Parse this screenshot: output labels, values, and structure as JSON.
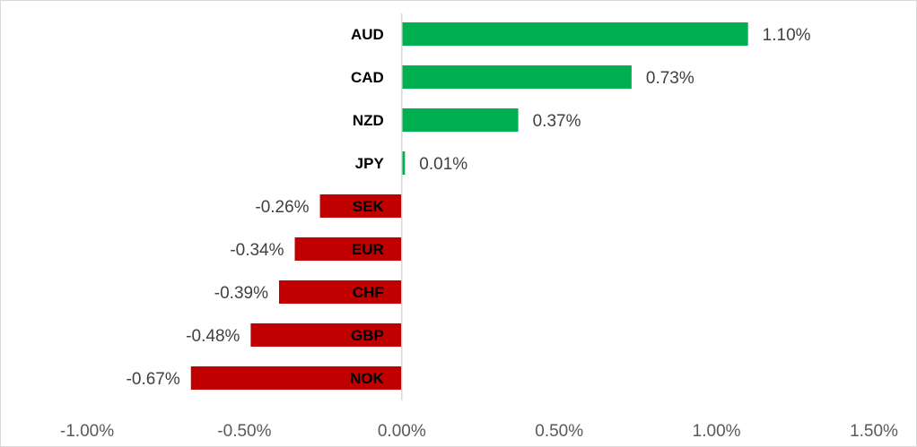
{
  "chart_data": {
    "type": "bar",
    "orientation": "horizontal",
    "categories": [
      "AUD",
      "CAD",
      "NZD",
      "JPY",
      "SEK",
      "EUR",
      "CHF",
      "GBP",
      "NOK"
    ],
    "values": [
      1.1,
      0.73,
      0.37,
      0.01,
      -0.26,
      -0.34,
      -0.39,
      -0.48,
      -0.67
    ],
    "data_labels": [
      "1.10%",
      "0.73%",
      "0.37%",
      "0.01%",
      "-0.26%",
      "-0.34%",
      "-0.39%",
      "-0.48%",
      "-0.67%"
    ],
    "x_ticks": [
      -1.0,
      -0.5,
      0.0,
      0.5,
      1.0,
      1.5
    ],
    "x_tick_labels": [
      "-1.00%",
      "-0.50%",
      "0.00%",
      "0.50%",
      "1.00%",
      "1.50%"
    ],
    "xlim": [
      -1.0,
      1.5
    ],
    "grid": false,
    "legend": "none",
    "colors": {
      "positive": "#00b050",
      "negative": "#c00000",
      "axis": "#d9d9d9"
    }
  }
}
